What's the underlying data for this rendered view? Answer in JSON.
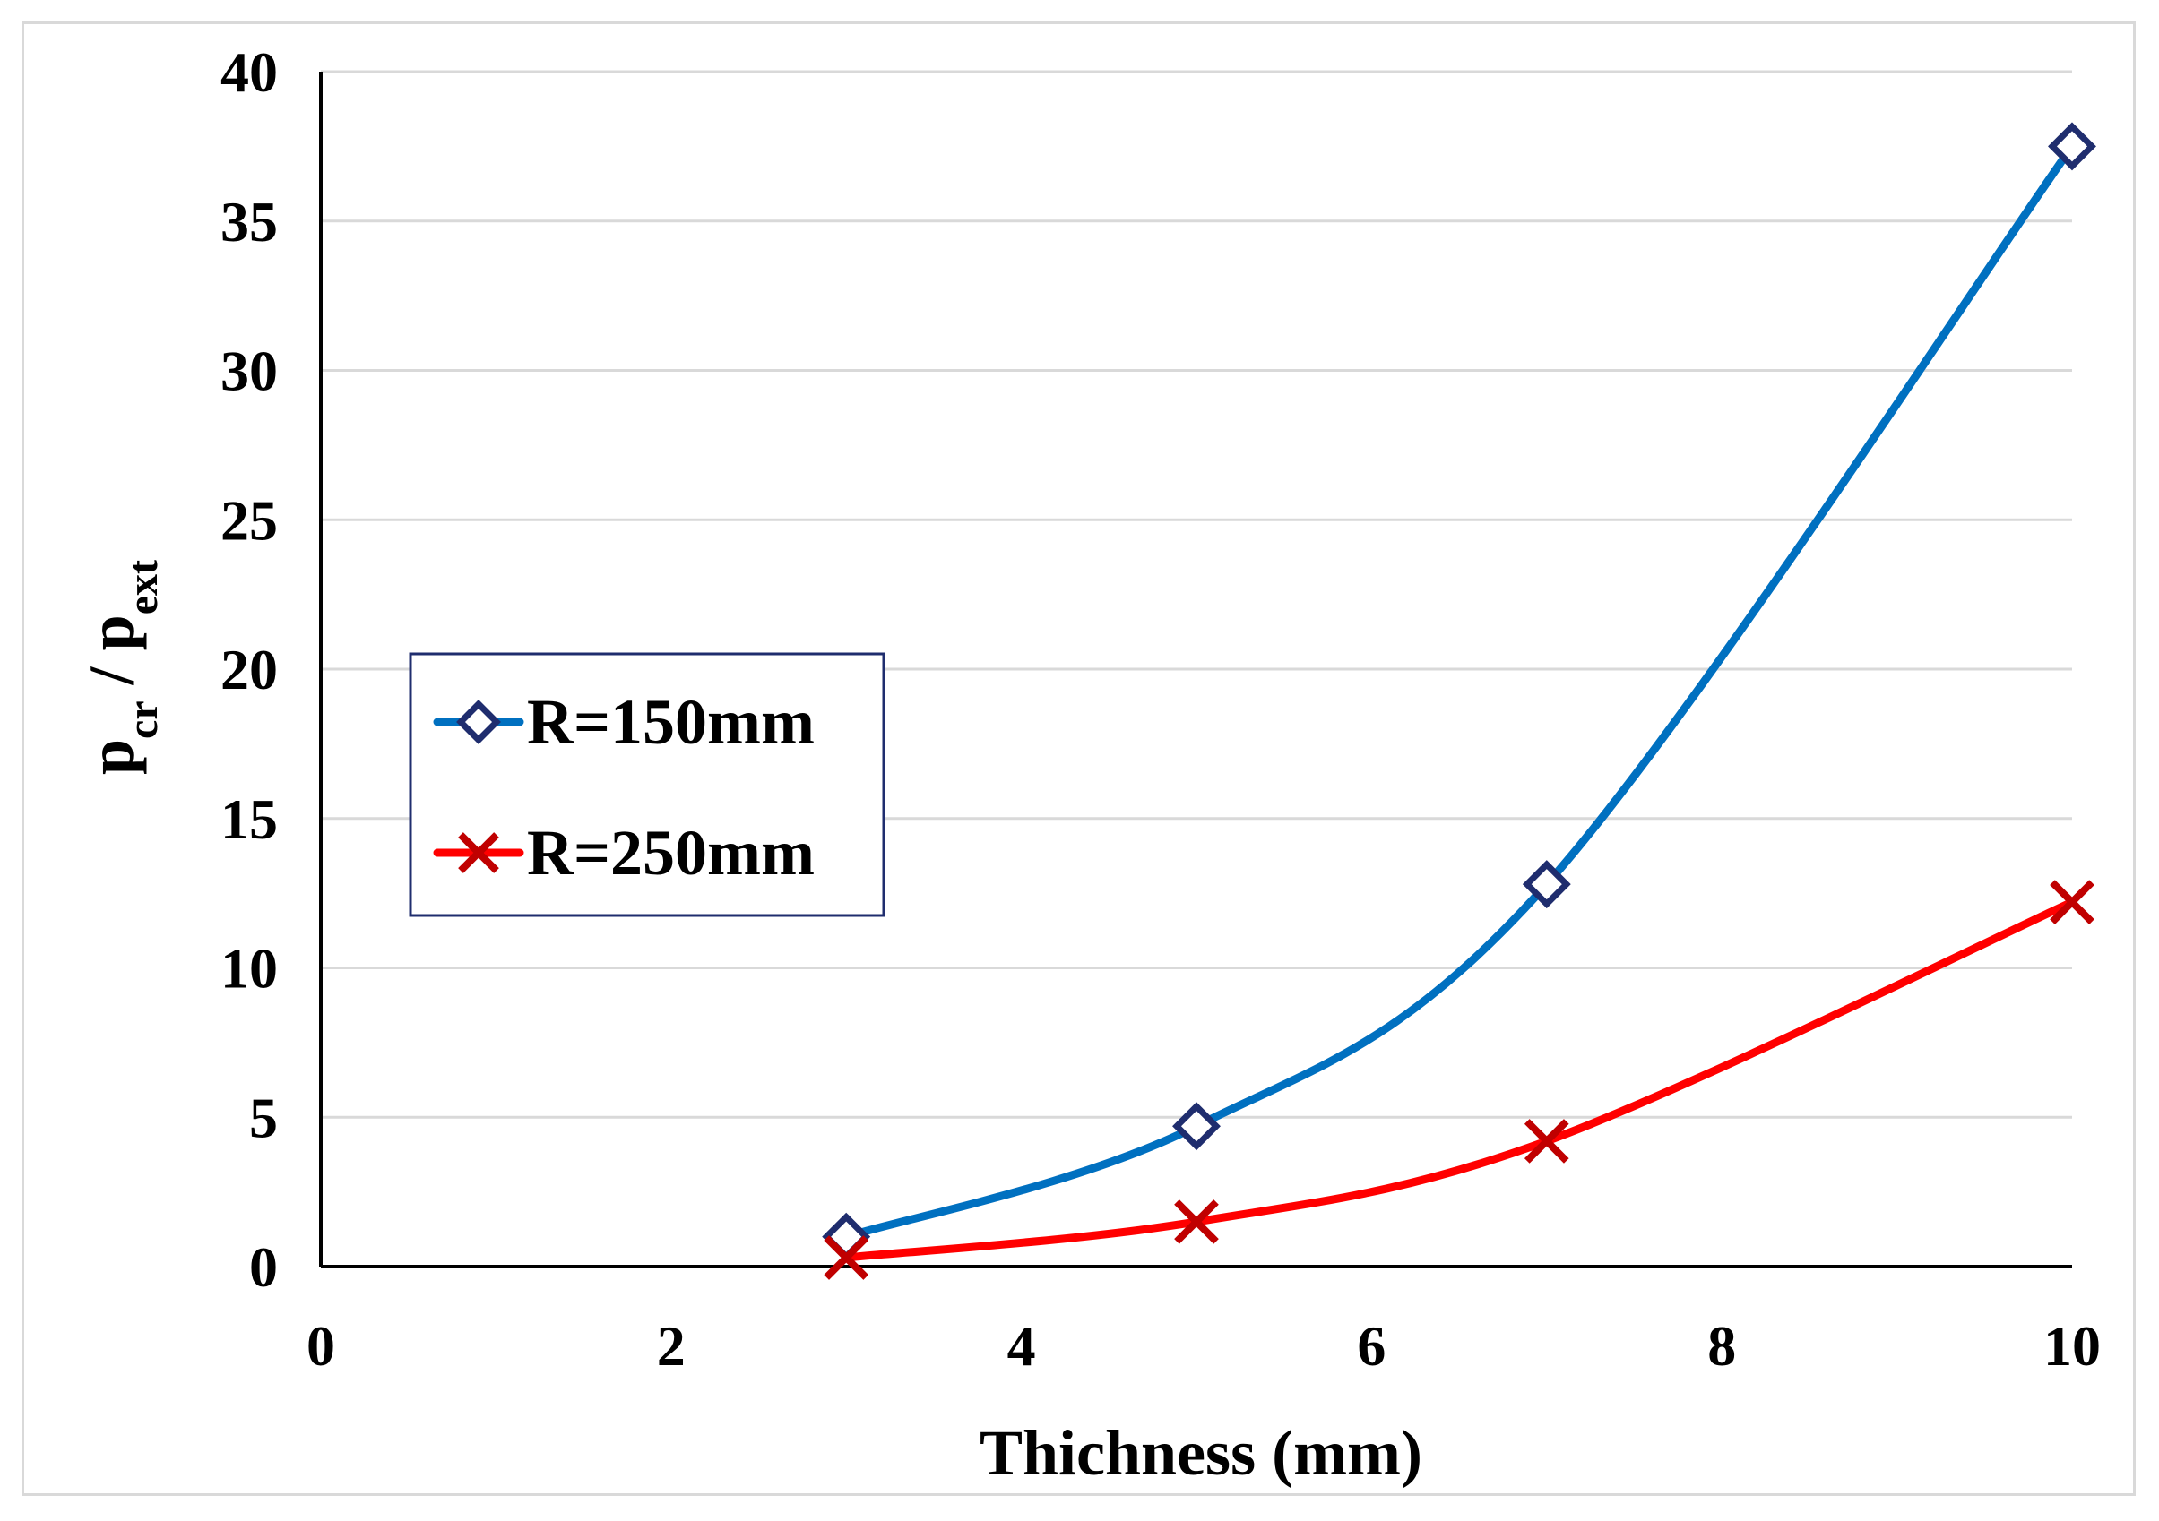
{
  "chart_data": {
    "type": "line",
    "title": "",
    "xlabel": "Thichness (mm)",
    "ylabel": {
      "main1": "p",
      "sub1": "cr",
      "sep": " / ",
      "main2": "p",
      "sub2": "ext"
    },
    "xlim": [
      0,
      10
    ],
    "ylim": [
      0,
      40
    ],
    "xticks": [
      0,
      2,
      4,
      6,
      8,
      10
    ],
    "yticks": [
      0,
      5,
      10,
      15,
      20,
      25,
      30,
      35,
      40
    ],
    "grid": "horizontal",
    "legend_position": "middle-left",
    "series": [
      {
        "name": "R=150mm",
        "color": "#0070c0",
        "marker": "diamond",
        "marker_color": "#1f2d6e",
        "x": [
          3,
          5,
          7,
          10
        ],
        "y": [
          1.0,
          4.7,
          12.8,
          37.5
        ]
      },
      {
        "name": "R=250mm",
        "color": "#ff0000",
        "marker": "x",
        "marker_color": "#c00000",
        "x": [
          3,
          5,
          7,
          10
        ],
        "y": [
          0.3,
          1.5,
          4.2,
          12.2
        ]
      }
    ]
  }
}
